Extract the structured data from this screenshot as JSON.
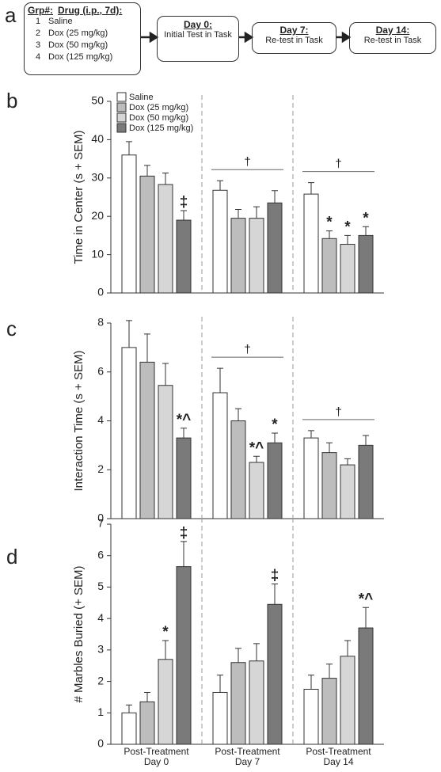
{
  "diagram": {
    "label": "a",
    "header": [
      "Grp#:",
      "Drug (i.p., 7d):"
    ],
    "groups": [
      [
        "1",
        "Saline"
      ],
      [
        "2",
        "Dox (25 mg/kg)"
      ],
      [
        "3",
        "Dox (50 mg/kg)"
      ],
      [
        "4",
        "Dox (125 mg/kg)"
      ]
    ],
    "steps": [
      {
        "title": "Day 0:",
        "text": "Initial Test in Task"
      },
      {
        "title": "Day 7:",
        "text": "Re-test in Task"
      },
      {
        "title": "Day 14:",
        "text": "Re-test in Task"
      }
    ]
  },
  "chart_data": [
    {
      "panel": "b",
      "type": "bar",
      "ylabel": "Time in Center (s + SEM)",
      "categories": [
        null,
        null,
        null
      ],
      "ylim": [
        0,
        50
      ],
      "yticks": [
        0,
        10,
        20,
        30,
        40,
        50
      ],
      "group_markers": [
        null,
        "†",
        "†"
      ],
      "series": [
        {
          "name": "Saline",
          "color": "#ffffff",
          "values": [
            36,
            26.8,
            25.8
          ],
          "errors": [
            3.5,
            2.5,
            3
          ],
          "markers": [
            null,
            null,
            null
          ]
        },
        {
          "name": "Dox (25 mg/kg)",
          "color": "#bdbdbd",
          "values": [
            30.5,
            19.5,
            14.2
          ],
          "errors": [
            2.8,
            2.3,
            2
          ],
          "markers": [
            null,
            null,
            "*"
          ]
        },
        {
          "name": "Dox (50 mg/kg)",
          "color": "#d6d6d6",
          "values": [
            28.3,
            19.5,
            12.7
          ],
          "errors": [
            3,
            3,
            2.3
          ],
          "markers": [
            null,
            null,
            "*"
          ]
        },
        {
          "name": "Dox (125 mg/kg)",
          "color": "#7a7a7a",
          "values": [
            19,
            23.5,
            15
          ],
          "errors": [
            2.5,
            3.2,
            2.3
          ],
          "markers": [
            "‡",
            null,
            "*"
          ]
        }
      ]
    },
    {
      "panel": "c",
      "type": "bar",
      "ylabel": "Interaction Time (s + SEM)",
      "categories": [
        null,
        null,
        null
      ],
      "ylim": [
        0,
        8
      ],
      "yticks": [
        0,
        2,
        4,
        6,
        8
      ],
      "group_markers": [
        null,
        "†",
        "†"
      ],
      "series": [
        {
          "color": "#ffffff",
          "values": [
            7.0,
            5.15,
            3.3
          ],
          "errors": [
            1.1,
            1.0,
            0.3
          ],
          "markers": [
            null,
            null,
            null
          ]
        },
        {
          "color": "#bdbdbd",
          "values": [
            6.4,
            4.0,
            2.7
          ],
          "errors": [
            1.15,
            0.5,
            0.4
          ],
          "markers": [
            null,
            null,
            null
          ]
        },
        {
          "color": "#d6d6d6",
          "values": [
            5.45,
            2.3,
            2.2
          ],
          "errors": [
            0.9,
            0.25,
            0.25
          ],
          "markers": [
            null,
            "*^",
            null
          ]
        },
        {
          "color": "#7a7a7a",
          "values": [
            3.3,
            3.1,
            3.0
          ],
          "errors": [
            0.4,
            0.4,
            0.4
          ],
          "markers": [
            "*^",
            "*",
            null
          ]
        }
      ]
    },
    {
      "panel": "d",
      "type": "bar",
      "ylabel": "# Marbles Buried (+ SEM)",
      "categories": [
        "Post-Treatment Day 0",
        "Post-Treatment Day 7",
        "Post-Treatment Day 14"
      ],
      "ylim": [
        0,
        7
      ],
      "yticks": [
        0,
        1,
        2,
        3,
        4,
        5,
        6,
        7
      ],
      "group_markers": [
        null,
        null,
        null
      ],
      "series": [
        {
          "color": "#ffffff",
          "values": [
            1.0,
            1.65,
            1.75
          ],
          "errors": [
            0.25,
            0.55,
            0.45
          ],
          "markers": [
            null,
            null,
            null
          ]
        },
        {
          "color": "#bdbdbd",
          "values": [
            1.35,
            2.6,
            2.1
          ],
          "errors": [
            0.3,
            0.45,
            0.45
          ],
          "markers": [
            null,
            null,
            null
          ]
        },
        {
          "color": "#d6d6d6",
          "values": [
            2.7,
            2.65,
            2.8
          ],
          "errors": [
            0.6,
            0.55,
            0.5
          ],
          "markers": [
            "*",
            null,
            null
          ]
        },
        {
          "color": "#7a7a7a",
          "values": [
            5.65,
            4.45,
            3.7
          ],
          "errors": [
            0.8,
            0.65,
            0.65
          ],
          "markers": [
            "‡",
            "‡",
            "*^"
          ]
        }
      ]
    }
  ]
}
